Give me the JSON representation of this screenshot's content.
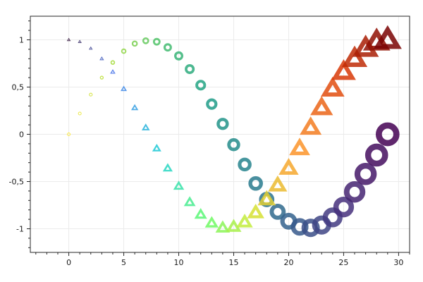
{
  "chart_data": {
    "type": "scatter",
    "title": "",
    "xlabel": "",
    "ylabel": "",
    "xlim": [
      -3.5,
      31
    ],
    "ylim": [
      -1.25,
      1.25
    ],
    "grid": true,
    "legend": "none",
    "x_ticks": [
      {
        "value": 0,
        "label": "0"
      },
      {
        "value": 5,
        "label": "5"
      },
      {
        "value": 10,
        "label": "10"
      },
      {
        "value": 15,
        "label": "15"
      },
      {
        "value": 20,
        "label": "20"
      },
      {
        "value": 25,
        "label": "25"
      },
      {
        "value": 30,
        "label": "30"
      }
    ],
    "y_ticks": [
      {
        "value": 1,
        "label": "1"
      },
      {
        "value": 0.5,
        "label": "0,5"
      },
      {
        "value": 0,
        "label": "0"
      },
      {
        "value": -0.5,
        "label": "-0,5"
      },
      {
        "value": -1,
        "label": "-1"
      }
    ],
    "series": [
      {
        "marker": "circle",
        "colormap": [
          "#fde725",
          "#a0da39",
          "#4ac16d",
          "#1fa187",
          "#277f8e",
          "#365c8d",
          "#46327e",
          "#440154"
        ],
        "size_range": [
          1,
          16
        ],
        "x": [
          0,
          1,
          2,
          3,
          4,
          5,
          6,
          7,
          8,
          9,
          10,
          11,
          12,
          13,
          14,
          15,
          16,
          17,
          18,
          19,
          20,
          21,
          22,
          23,
          24,
          25,
          26,
          27,
          28,
          29
        ],
        "y": [
          0,
          0.22,
          0.42,
          0.6,
          0.76,
          0.88,
          0.96,
          0.99,
          0.98,
          0.92,
          0.83,
          0.69,
          0.52,
          0.32,
          0.11,
          -0.11,
          -0.32,
          -0.52,
          -0.69,
          -0.82,
          -0.92,
          -0.98,
          -0.99,
          -0.96,
          -0.88,
          -0.77,
          -0.61,
          -0.42,
          -0.22,
          0
        ]
      },
      {
        "marker": "triangle",
        "colormap": [
          "#30123b",
          "#4675ed",
          "#1bcfd4",
          "#61fc6c",
          "#d1e935",
          "#fe9b2d",
          "#db3a07",
          "#7a0403"
        ],
        "size_range": [
          1,
          16
        ],
        "x": [
          0,
          1,
          2,
          3,
          4,
          5,
          6,
          7,
          8,
          9,
          10,
          11,
          12,
          13,
          14,
          15,
          16,
          17,
          18,
          19,
          20,
          21,
          22,
          23,
          24,
          25,
          26,
          27,
          28,
          29
        ],
        "y": [
          1,
          0.98,
          0.91,
          0.8,
          0.66,
          0.48,
          0.28,
          0.07,
          -0.15,
          -0.36,
          -0.55,
          -0.72,
          -0.85,
          -0.94,
          -0.99,
          -0.98,
          -0.93,
          -0.83,
          -0.69,
          -0.54,
          -0.36,
          -0.15,
          0.07,
          0.28,
          0.48,
          0.66,
          0.8,
          0.91,
          0.98,
          1
        ]
      }
    ]
  }
}
